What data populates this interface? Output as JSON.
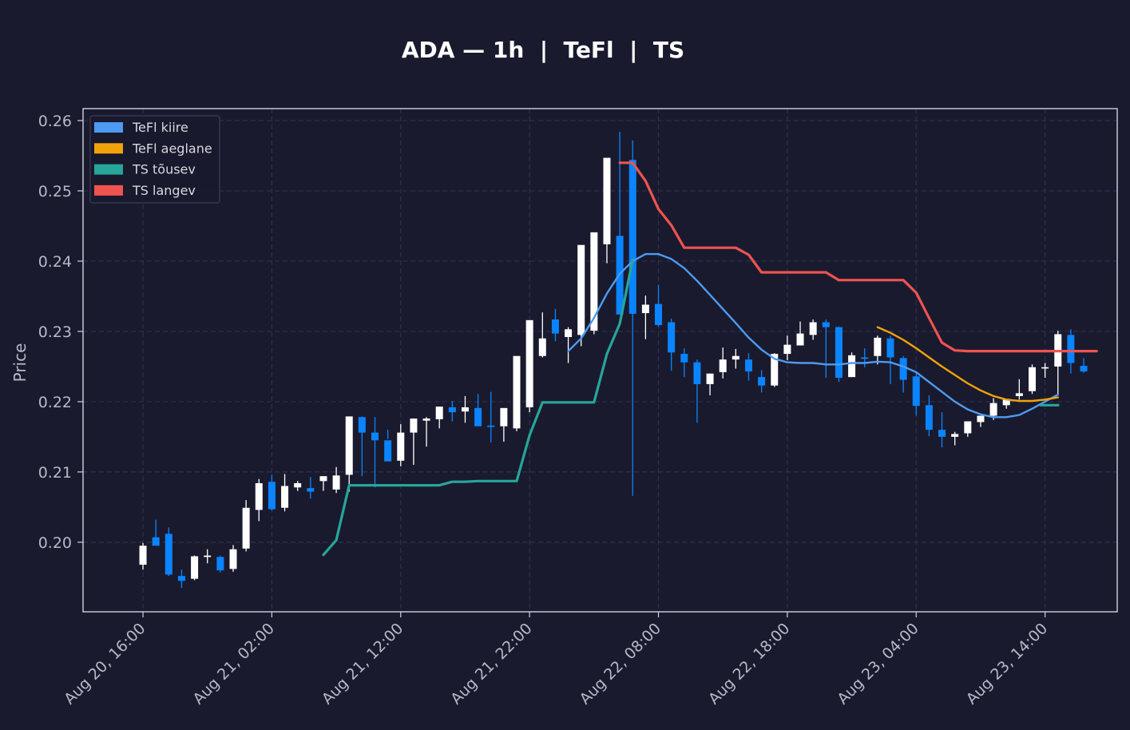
{
  "chart_data": {
    "type": "candlestick",
    "title": "ADA — 1h  |  TeFl  |  TS",
    "xlabel": "",
    "ylabel": "Price",
    "ylim": [
      0.1901,
      0.2617
    ],
    "yticks": [
      0.2,
      0.21,
      0.22,
      0.23,
      0.24,
      0.25,
      0.26
    ],
    "ytick_labels": [
      "0.20",
      "0.21",
      "0.22",
      "0.23",
      "0.24",
      "0.25",
      "0.26"
    ],
    "x_start": "Aug 20, 16:00",
    "x_step": "1h",
    "xticks": [
      0,
      10,
      20,
      30,
      40,
      50,
      60,
      70
    ],
    "xtick_labels": [
      "Aug 20, 16:00",
      "Aug 21, 02:00",
      "Aug 21, 12:00",
      "Aug 21, 22:00",
      "Aug 22, 08:00",
      "Aug 22, 18:00",
      "Aug 23, 04:00",
      "Aug 23, 14:00"
    ],
    "xlim": [
      -4.65,
      75.6
    ],
    "grid": true,
    "legend_position": "top-left",
    "colors": {
      "up": "#ffffff",
      "down": "#0a84ff",
      "background": "#1a1a2e",
      "grid": "#2e3150",
      "axis": "#d0d0e0"
    },
    "candles": {
      "open": [
        0.1968,
        0.2007,
        0.2012,
        0.1952,
        0.1948,
        0.1979,
        0.1979,
        0.1962,
        0.1991,
        0.2046,
        0.2086,
        0.2049,
        0.2078,
        0.2077,
        0.2087,
        0.2075,
        0.2096,
        0.2178,
        0.2156,
        0.2145,
        0.2116,
        0.2156,
        0.2173,
        0.2175,
        0.2192,
        0.2186,
        0.2191,
        0.2166,
        0.2165,
        0.2162,
        0.2192,
        0.2265,
        0.2317,
        0.2292,
        0.2295,
        0.2301,
        0.2424,
        0.2436,
        0.2544,
        0.2326,
        0.2339,
        0.2313,
        0.2268,
        0.2256,
        0.2225,
        0.2242,
        0.226,
        0.226,
        0.2235,
        0.2223,
        0.2268,
        0.228,
        0.2295,
        0.2313,
        0.2306,
        0.2235,
        0.2263,
        0.2265,
        0.229,
        0.2262,
        0.2236,
        0.2195,
        0.216,
        0.215,
        0.2155,
        0.2171,
        0.218,
        0.2195,
        0.2208,
        0.2215,
        0.2248,
        0.225,
        0.2295,
        0.2251
      ],
      "high": [
        0.1999,
        0.2032,
        0.2021,
        0.1961,
        0.1981,
        0.199,
        0.1981,
        0.1996,
        0.206,
        0.209,
        0.2096,
        0.2097,
        0.2087,
        0.2093,
        0.2093,
        0.2107,
        0.2112,
        0.2179,
        0.2178,
        0.216,
        0.2168,
        0.2165,
        0.2178,
        0.2181,
        0.2201,
        0.2208,
        0.2211,
        0.2214,
        0.2171,
        0.2203,
        0.2268,
        0.2327,
        0.2332,
        0.2306,
        0.2323,
        0.2424,
        0.2488,
        0.2584,
        0.2572,
        0.2351,
        0.2366,
        0.2318,
        0.2276,
        0.226,
        0.224,
        0.2277,
        0.2275,
        0.2269,
        0.2245,
        0.2269,
        0.2294,
        0.2314,
        0.2317,
        0.2317,
        0.2307,
        0.227,
        0.2276,
        0.2294,
        0.2294,
        0.2265,
        0.2241,
        0.2209,
        0.2185,
        0.2157,
        0.2169,
        0.218,
        0.2205,
        0.2204,
        0.2232,
        0.2253,
        0.2255,
        0.2301,
        0.2303,
        0.2262
      ],
      "low": [
        0.1961,
        0.1997,
        0.1952,
        0.1935,
        0.1946,
        0.197,
        0.1957,
        0.1958,
        0.1987,
        0.203,
        0.2045,
        0.2044,
        0.2073,
        0.2062,
        0.2073,
        0.207,
        0.2072,
        0.2094,
        0.2078,
        0.2147,
        0.2108,
        0.211,
        0.2136,
        0.2162,
        0.2172,
        0.217,
        0.2167,
        0.2142,
        0.2143,
        0.2158,
        0.2185,
        0.2263,
        0.2286,
        0.2255,
        0.2279,
        0.2296,
        0.2397,
        0.2429,
        0.2066,
        0.2289,
        0.2307,
        0.2244,
        0.2235,
        0.217,
        0.2209,
        0.2233,
        0.2247,
        0.223,
        0.2213,
        0.2221,
        0.2259,
        0.228,
        0.2288,
        0.2234,
        0.2228,
        0.2245,
        0.2249,
        0.2253,
        0.2225,
        0.2213,
        0.218,
        0.2151,
        0.2135,
        0.2138,
        0.215,
        0.2164,
        0.2174,
        0.219,
        0.2203,
        0.2211,
        0.2234,
        0.2211,
        0.224,
        0.2241
      ],
      "close": [
        0.1995,
        0.1995,
        0.1954,
        0.1945,
        0.198,
        0.1981,
        0.196,
        0.199,
        0.2049,
        0.2084,
        0.2047,
        0.208,
        0.2084,
        0.2072,
        0.2094,
        0.2095,
        0.2179,
        0.2156,
        0.2145,
        0.2115,
        0.2156,
        0.2176,
        0.2176,
        0.2193,
        0.2185,
        0.2192,
        0.2165,
        0.2164,
        0.2191,
        0.2265,
        0.2316,
        0.229,
        0.2297,
        0.2303,
        0.2423,
        0.2441,
        0.2547,
        0.2324,
        0.2325,
        0.2338,
        0.2309,
        0.227,
        0.2256,
        0.2225,
        0.224,
        0.226,
        0.2265,
        0.2243,
        0.2223,
        0.2268,
        0.2281,
        0.2297,
        0.2313,
        0.2306,
        0.2234,
        0.2266,
        0.2261,
        0.2291,
        0.2263,
        0.2231,
        0.2194,
        0.216,
        0.215,
        0.2154,
        0.2172,
        0.218,
        0.2198,
        0.2204,
        0.2212,
        0.2249,
        0.2249,
        0.2296,
        0.2255,
        0.2243
      ]
    },
    "series": [
      {
        "name": "TeFl kiire",
        "color": "#4d9bf2",
        "x_start": 33,
        "values": [
          0.2272,
          0.229,
          0.2319,
          0.2354,
          0.2382,
          0.24,
          0.241,
          0.241,
          0.2403,
          0.239,
          0.2372,
          0.2352,
          0.2332,
          0.2312,
          0.2291,
          0.2274,
          0.2261,
          0.2256,
          0.2255,
          0.2255,
          0.2253,
          0.2253,
          0.2255,
          0.2255,
          0.2257,
          0.2256,
          0.225,
          0.2242,
          0.2228,
          0.2214,
          0.22,
          0.2189,
          0.2182,
          0.2178,
          0.2178,
          0.2181,
          0.219,
          0.22,
          0.221
        ]
      },
      {
        "name": "TeFl aeglane",
        "color": "#f0a30a",
        "x_start": 57,
        "values": [
          0.2306,
          0.2298,
          0.2288,
          0.2276,
          0.2263,
          0.225,
          0.2238,
          0.2226,
          0.2216,
          0.2208,
          0.2203,
          0.2201,
          0.2201,
          0.2203,
          0.2206
        ]
      },
      {
        "name": "TS tõusev",
        "color": "#26a69a",
        "x_start": 14,
        "values": [
          0.1982,
          0.2003,
          0.2081,
          0.2081,
          0.2081,
          0.2081,
          0.2081,
          0.2081,
          0.2081,
          0.2081,
          0.2086,
          0.2086,
          0.2087,
          0.2087,
          0.2087,
          0.2087,
          0.2152,
          0.2199,
          0.2199,
          0.2199,
          0.2199,
          0.2199,
          0.2268,
          0.2311,
          0.2402
        ],
        "extra_segment": {
          "x_start": 69.6,
          "x_end": 71.1,
          "value": 0.2195
        }
      },
      {
        "name": "TS langev",
        "color": "#ef5350",
        "x_start": 37,
        "values": [
          0.254,
          0.254,
          0.2514,
          0.2474,
          0.2451,
          0.2419,
          0.2419,
          0.2419,
          0.2419,
          0.2419,
          0.2409,
          0.2384,
          0.2384,
          0.2384,
          0.2384,
          0.2384,
          0.2384,
          0.2373,
          0.2373,
          0.2373,
          0.2373,
          0.2373,
          0.2373,
          0.2355,
          0.2319,
          0.2284,
          0.2273,
          0.2272,
          0.2272,
          0.2272,
          0.2272,
          0.2272,
          0.2272,
          0.2272,
          0.2272,
          0.2272,
          0.2272,
          0.2272
        ]
      }
    ]
  }
}
